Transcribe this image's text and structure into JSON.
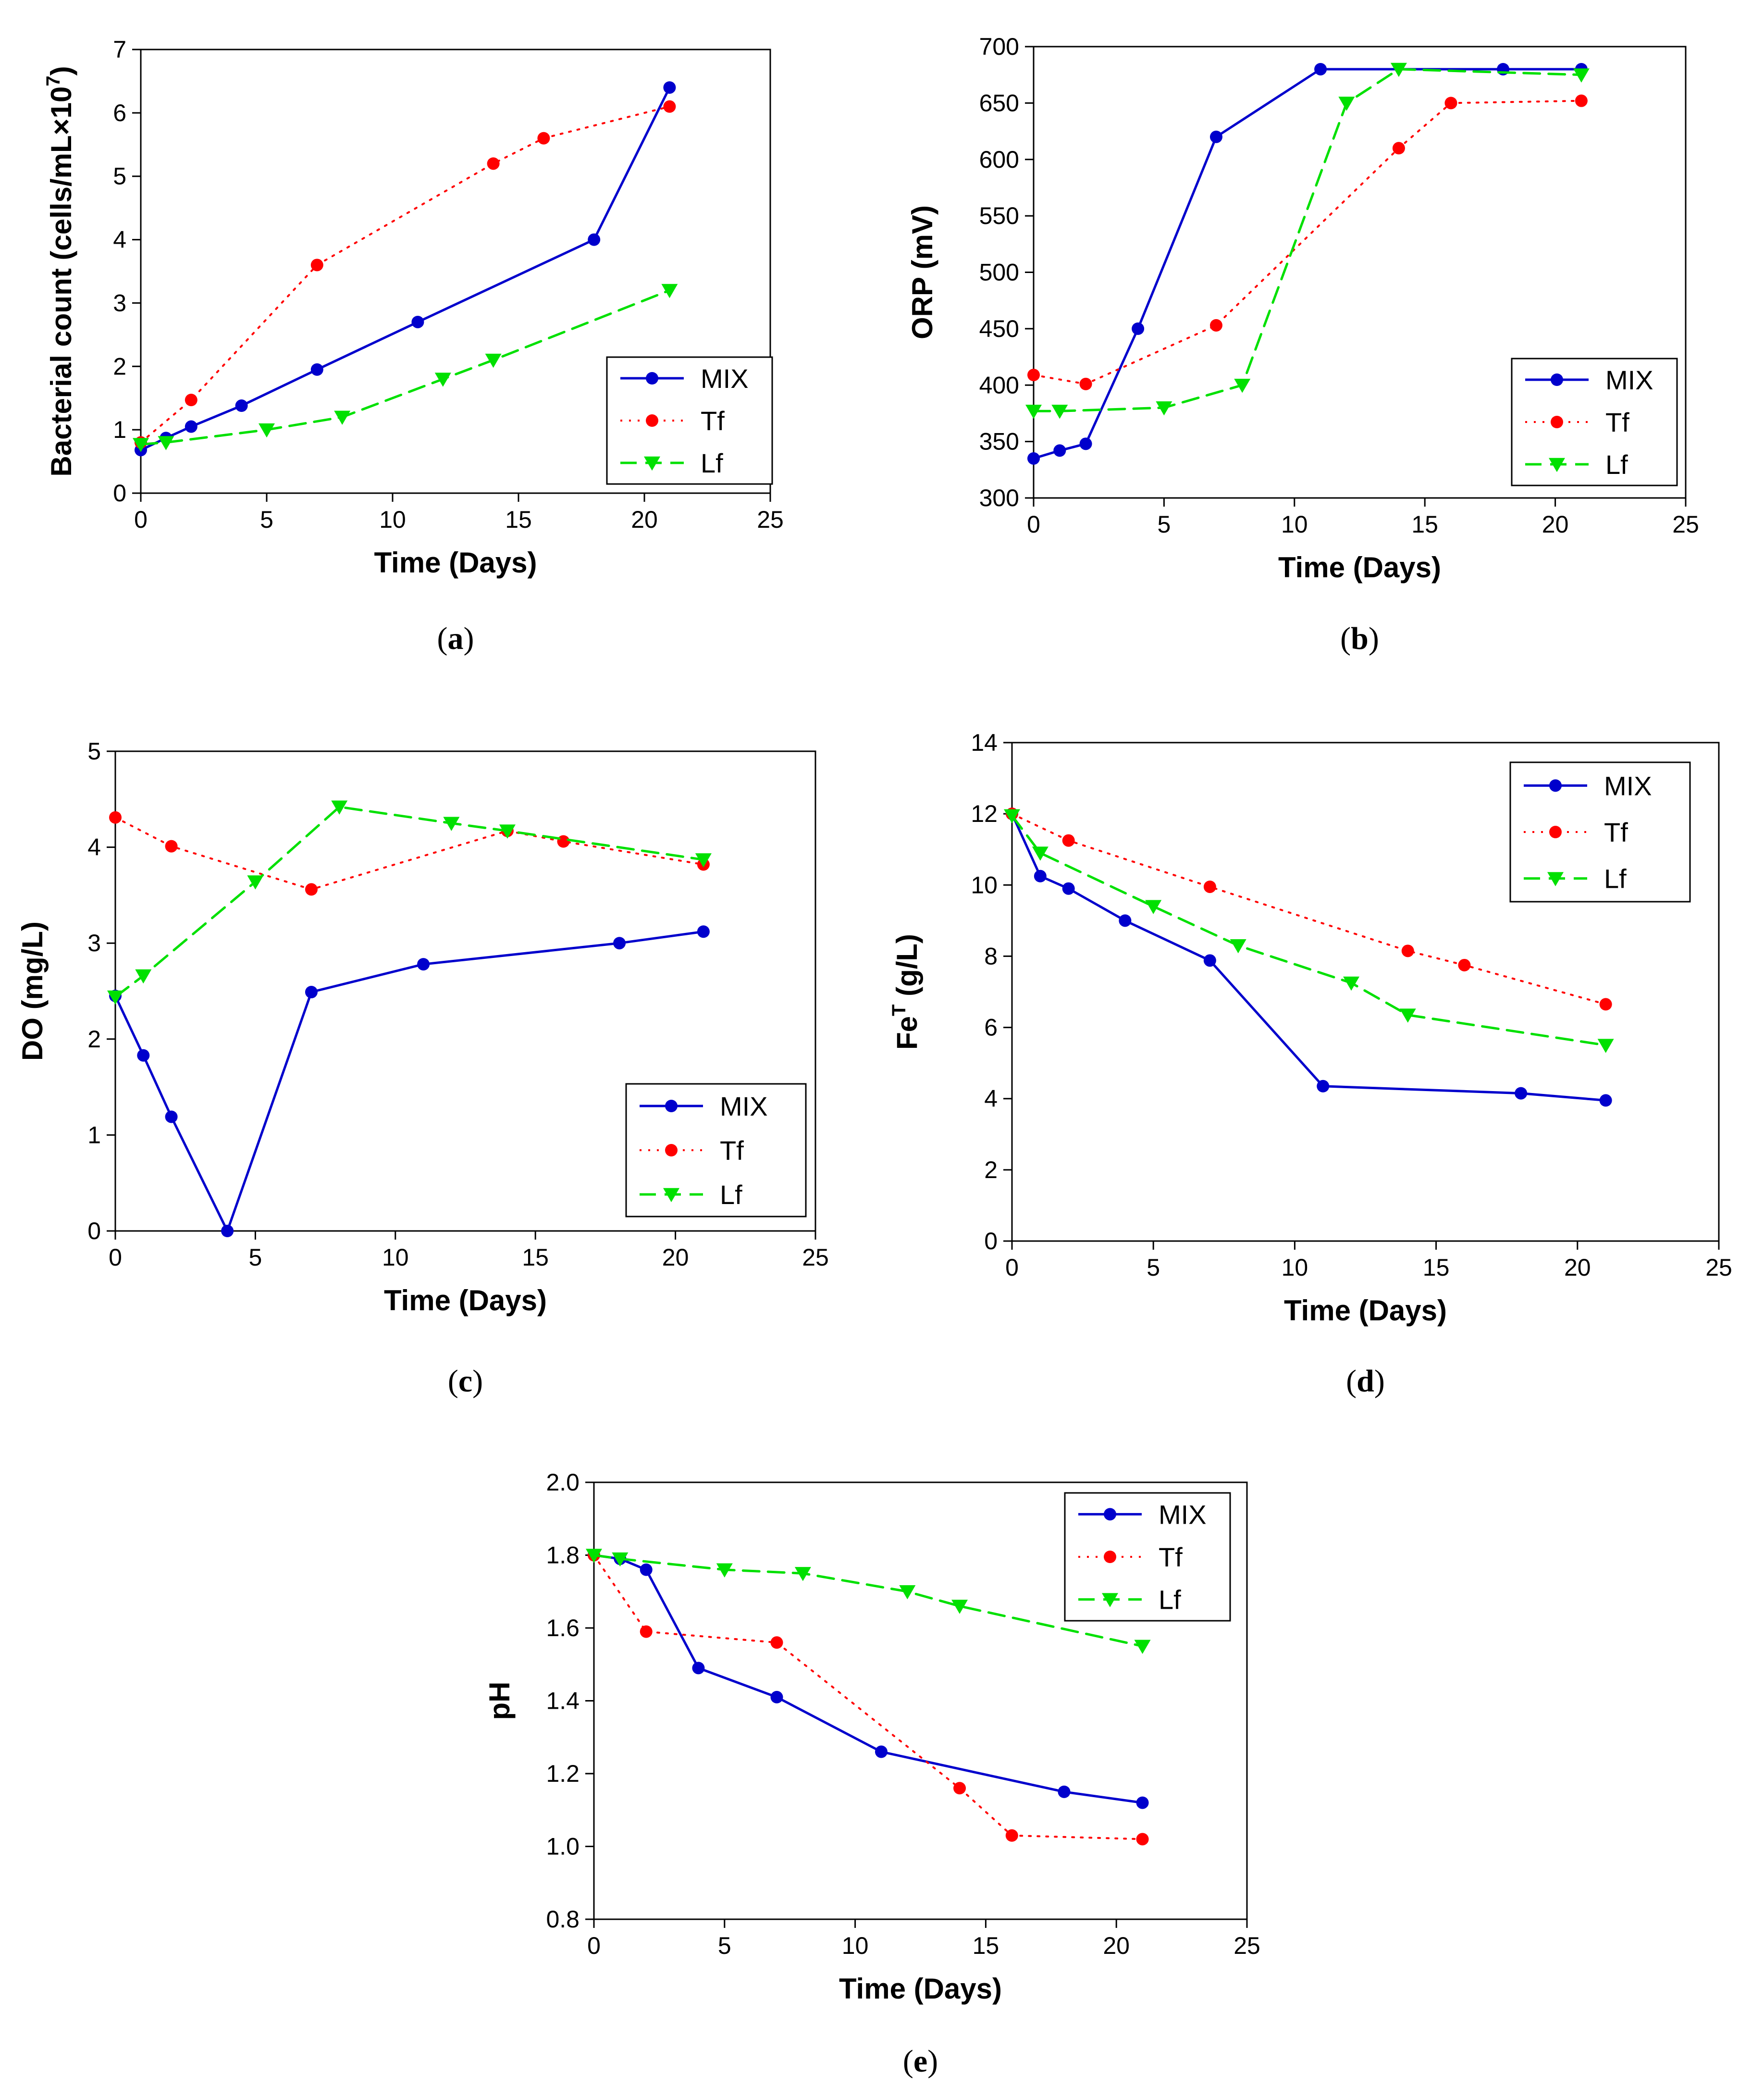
{
  "figure_captions": [
    "(a)",
    "(b)",
    "(c)",
    "(d)",
    "(e)"
  ],
  "legend_labels": [
    "MIX",
    "Tf",
    "Lf"
  ],
  "series_colors": {
    "MIX": "#0000cc",
    "Tf": "#ff0000",
    "Lf": "#00e000"
  },
  "chart_data": [
    {
      "id": "a",
      "type": "line",
      "caption": "(a)",
      "caption_letter": "a",
      "xlabel": "Time (Days)",
      "ylabel": "Bacterial count (cells/mL×10",
      "ylabel_sup": "7",
      "ylabel_tail": ")",
      "xlim": [
        0,
        25
      ],
      "ylim": [
        0,
        7
      ],
      "xticks": [
        0,
        5,
        10,
        15,
        20,
        25
      ],
      "yticks": [
        0,
        1,
        2,
        3,
        4,
        5,
        6,
        7
      ],
      "ytick_labels": [
        "0",
        "1",
        "2",
        "3",
        "4",
        "5",
        "6",
        "7"
      ],
      "legend_position": "lower-right",
      "series": [
        {
          "name": "MIX",
          "x": [
            0,
            1,
            2,
            4,
            7,
            11,
            18,
            21
          ],
          "y": [
            0.68,
            0.87,
            1.05,
            1.38,
            1.95,
            2.7,
            4.0,
            6.4
          ]
        },
        {
          "name": "Tf",
          "x": [
            0,
            2,
            7,
            14,
            16,
            21
          ],
          "y": [
            0.8,
            1.47,
            3.6,
            5.2,
            5.6,
            6.1
          ]
        },
        {
          "name": "Lf",
          "x": [
            0,
            1,
            5,
            8,
            12,
            14,
            21
          ],
          "y": [
            0.77,
            0.8,
            1.0,
            1.2,
            1.8,
            2.1,
            3.2
          ]
        }
      ]
    },
    {
      "id": "b",
      "type": "line",
      "caption": "(b)",
      "caption_letter": "b",
      "xlabel": "Time (Days)",
      "ylabel": "ORP (mV)",
      "xlim": [
        0,
        25
      ],
      "ylim": [
        300,
        700
      ],
      "xticks": [
        0,
        5,
        10,
        15,
        20,
        25
      ],
      "yticks": [
        300,
        350,
        400,
        450,
        500,
        550,
        600,
        650,
        700
      ],
      "ytick_labels": [
        "300",
        "350",
        "400",
        "450",
        "500",
        "550",
        "600",
        "650",
        "700"
      ],
      "legend_position": "lower-right",
      "series": [
        {
          "name": "MIX",
          "x": [
            0,
            1,
            2,
            4,
            7,
            11,
            18,
            21
          ],
          "y": [
            335,
            342,
            348,
            450,
            620,
            680,
            680,
            680
          ]
        },
        {
          "name": "Tf",
          "x": [
            0,
            2,
            7,
            14,
            16,
            21
          ],
          "y": [
            409,
            401,
            453,
            610,
            650,
            652
          ]
        },
        {
          "name": "Lf",
          "x": [
            0,
            1,
            5,
            8,
            12,
            14,
            21
          ],
          "y": [
            377,
            377,
            380,
            400,
            650,
            680,
            675
          ]
        }
      ]
    },
    {
      "id": "c",
      "type": "line",
      "caption": "(c)",
      "caption_letter": "c",
      "xlabel": "Time (Days)",
      "ylabel": "DO (mg/L)",
      "xlim": [
        0,
        25
      ],
      "ylim": [
        0,
        5
      ],
      "xticks": [
        0,
        5,
        10,
        15,
        20,
        25
      ],
      "yticks": [
        0,
        1,
        2,
        3,
        4,
        5
      ],
      "ytick_labels": [
        "0",
        "1",
        "2",
        "3",
        "4",
        "5"
      ],
      "legend_position": "lower-right",
      "series": [
        {
          "name": "MIX",
          "x": [
            0,
            1,
            2,
            4,
            7,
            11,
            18,
            21
          ],
          "y": [
            2.45,
            1.83,
            1.19,
            0.0,
            2.49,
            2.78,
            3.0,
            3.12
          ]
        },
        {
          "name": "Tf",
          "x": [
            0,
            2,
            7,
            14,
            16,
            21
          ],
          "y": [
            4.31,
            4.01,
            3.56,
            4.17,
            4.06,
            3.82
          ]
        },
        {
          "name": "Lf",
          "x": [
            0,
            1,
            5,
            8,
            12,
            14,
            21
          ],
          "y": [
            2.44,
            2.66,
            3.64,
            4.42,
            4.25,
            4.17,
            3.87
          ]
        }
      ]
    },
    {
      "id": "d",
      "type": "line",
      "caption": "(d)",
      "caption_letter": "d",
      "xlabel": "Time (Days)",
      "ylabel": "Fe",
      "ylabel_sup": "T",
      "ylabel_tail": " (g/L)",
      "xlim": [
        0,
        25
      ],
      "ylim": [
        0,
        14
      ],
      "xticks": [
        0,
        5,
        10,
        15,
        20,
        25
      ],
      "yticks": [
        0,
        2,
        4,
        6,
        8,
        10,
        12,
        14
      ],
      "ytick_labels": [
        "0",
        "2",
        "4",
        "6",
        "8",
        "10",
        "12",
        "14"
      ],
      "legend_position": "top-right",
      "series": [
        {
          "name": "MIX",
          "x": [
            0,
            1,
            2,
            4,
            7,
            11,
            18,
            21
          ],
          "y": [
            12.0,
            10.25,
            9.9,
            9.0,
            7.88,
            4.35,
            4.15,
            3.95
          ]
        },
        {
          "name": "Tf",
          "x": [
            0,
            2,
            7,
            14,
            16,
            21
          ],
          "y": [
            12.0,
            11.25,
            9.95,
            8.15,
            7.75,
            6.65
          ]
        },
        {
          "name": "Lf",
          "x": [
            0,
            1,
            5,
            8,
            12,
            14,
            21
          ],
          "y": [
            11.95,
            10.9,
            9.4,
            8.3,
            7.25,
            6.35,
            5.5
          ]
        }
      ]
    },
    {
      "id": "e",
      "type": "line",
      "caption": "(e)",
      "caption_letter": "e",
      "xlabel": "Time (Days)",
      "ylabel": "pH",
      "xlim": [
        0,
        25
      ],
      "ylim": [
        0.8,
        2.0
      ],
      "xticks": [
        0,
        5,
        10,
        15,
        20,
        25
      ],
      "yticks": [
        0.8,
        1.0,
        1.2,
        1.4,
        1.6,
        1.8,
        2.0
      ],
      "ytick_labels": [
        "0.8",
        "1.0",
        "1.2",
        "1.4",
        "1.6",
        "1.8",
        "2.0"
      ],
      "legend_position": "top-right",
      "series": [
        {
          "name": "MIX",
          "x": [
            0,
            1,
            2,
            4,
            7,
            11,
            18,
            21
          ],
          "y": [
            1.8,
            1.79,
            1.76,
            1.49,
            1.41,
            1.26,
            1.15,
            1.12
          ]
        },
        {
          "name": "Tf",
          "x": [
            0,
            2,
            7,
            14,
            16,
            21
          ],
          "y": [
            1.8,
            1.59,
            1.56,
            1.16,
            1.03,
            1.02
          ]
        },
        {
          "name": "Lf",
          "x": [
            0,
            1,
            5,
            8,
            12,
            14,
            21
          ],
          "y": [
            1.8,
            1.79,
            1.76,
            1.75,
            1.7,
            1.66,
            1.55
          ]
        }
      ]
    }
  ]
}
